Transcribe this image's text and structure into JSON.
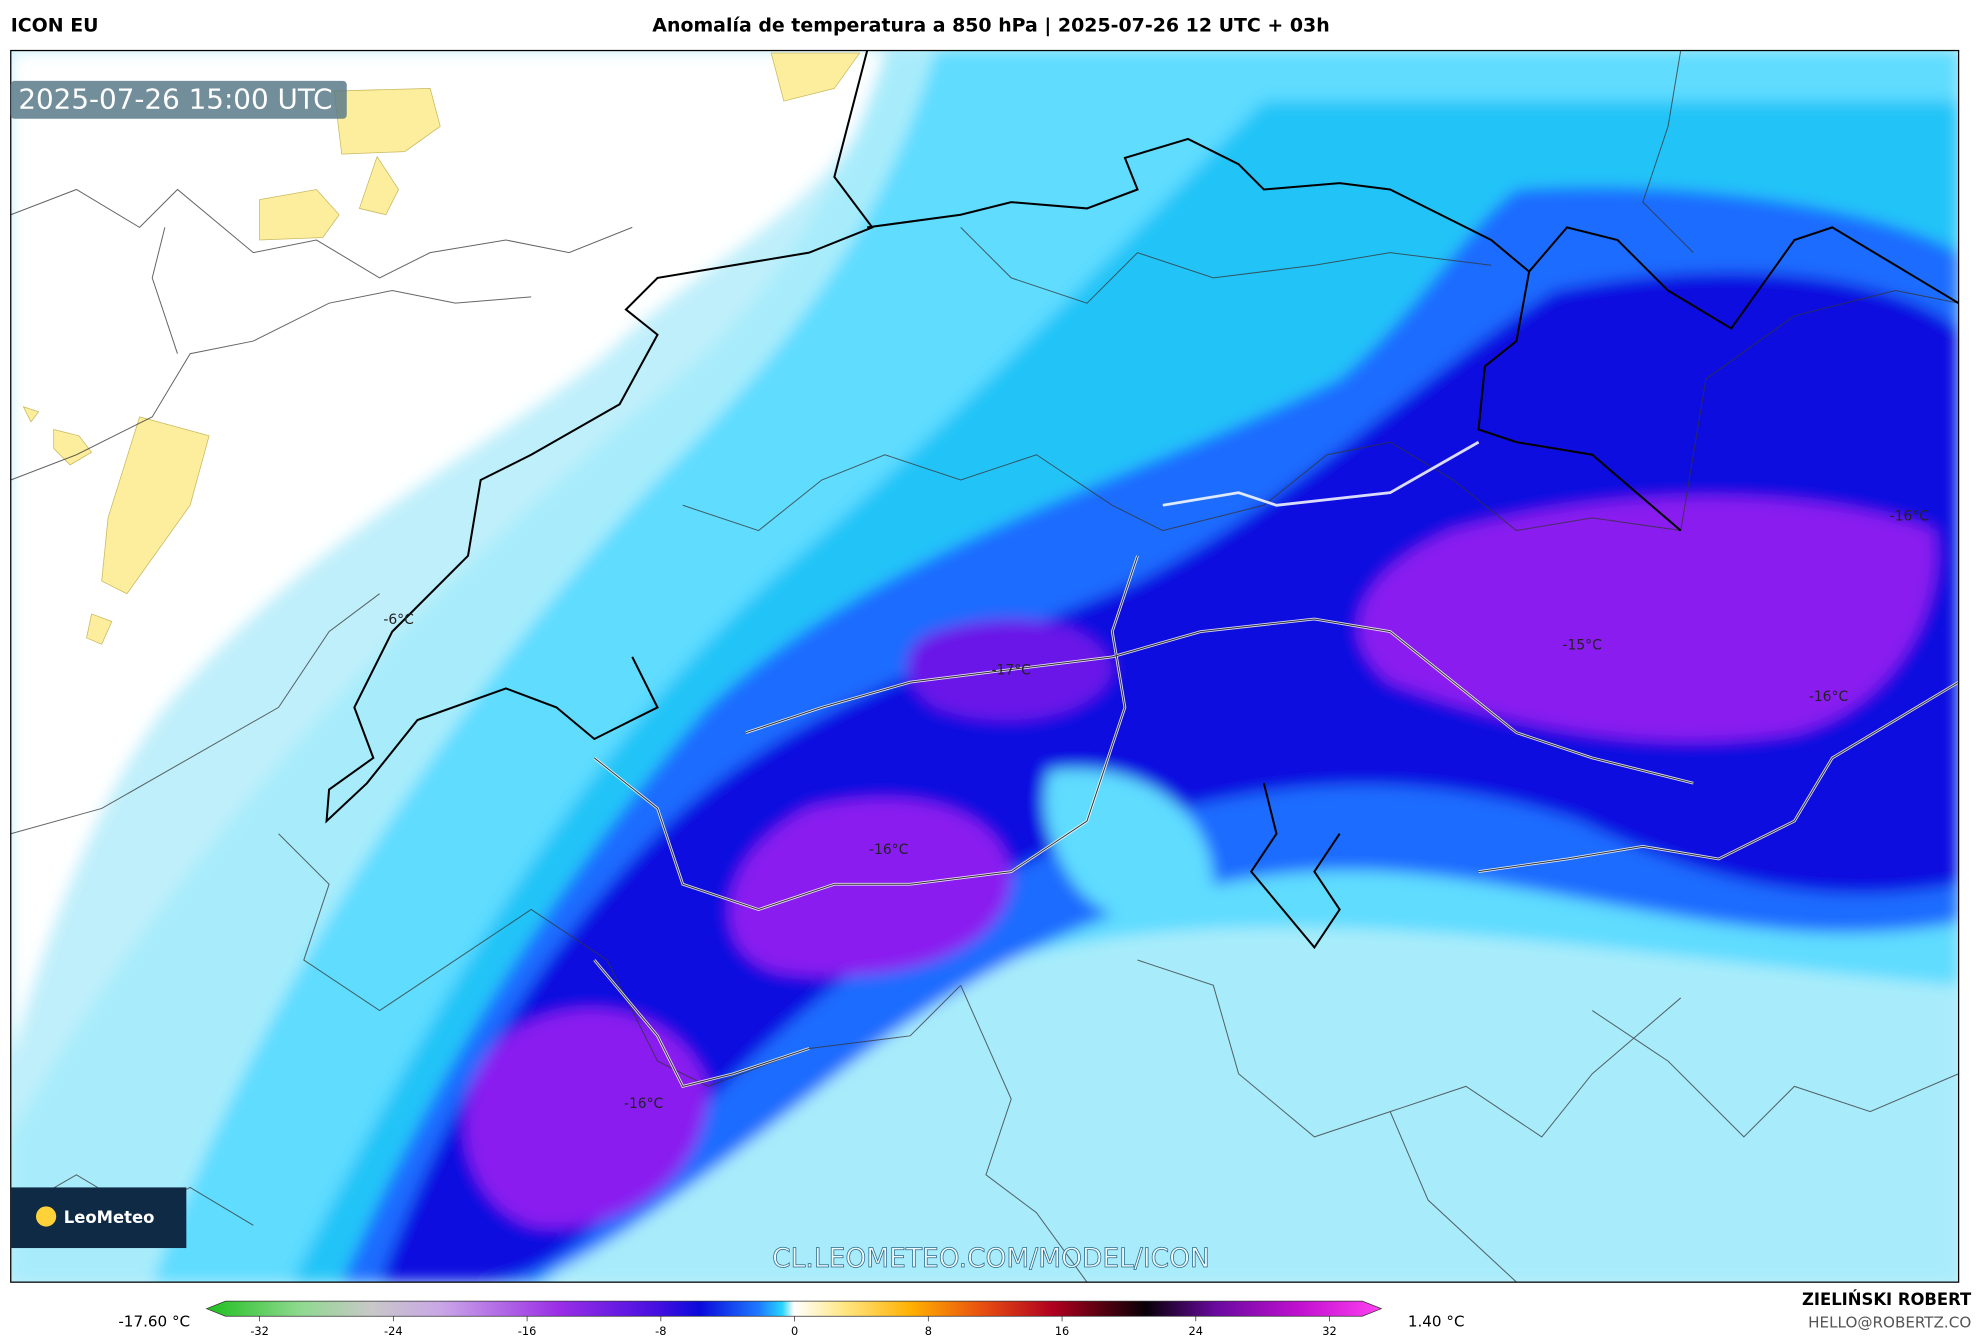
{
  "header": {
    "model": "ICON EU",
    "title": "Anomalía de temperatura a 850 hPa | 2025-07-26 12 UTC + 03h"
  },
  "map": {
    "timestamp": "2025-07-26 15:00 UTC",
    "labels": [
      "-6°C",
      "-17°C",
      "-16°C",
      "-16°C",
      "-15°C",
      "-16°C",
      "-16°C"
    ],
    "watermark": "CL.LEOMETEO.COM/MODEL/ICON",
    "logo": "LeoMeteo"
  },
  "colorbar": {
    "min_label": "-17.60 °C",
    "max_label": "1.40 °C",
    "ticks": [
      -32,
      -24,
      -16,
      -8,
      0,
      8,
      16,
      24,
      32
    ]
  },
  "footer": {
    "author": "ZIELIŃSKI ROBERT",
    "contact": "HELLO@ROBERTZ.CO"
  }
}
